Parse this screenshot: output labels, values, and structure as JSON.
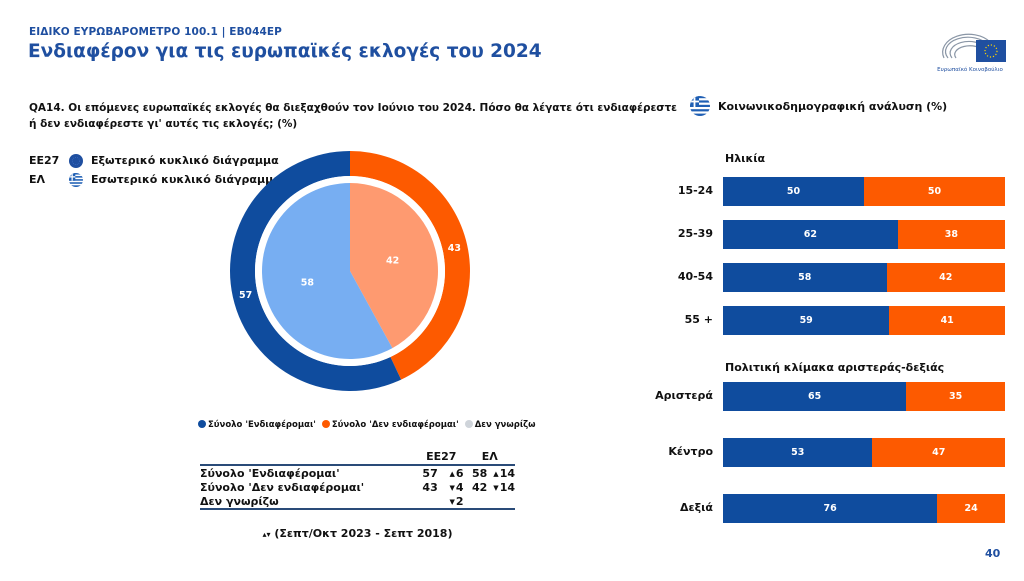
{
  "header": {
    "kicker": "ΕΙΔΙΚΟ ΕΥΡΩΒΑΡΟΜΕΤΡΟ 100.1 | ΕΒ044ΕΡ",
    "title": "Ενδιαφέρον για τις ευρωπαϊκές εκλογές του 2024",
    "logo_text": "Ευρωπαϊκό Κοινοβούλιο"
  },
  "question": "QA14. Οι επόμενες ευρωπαϊκές εκλογές θα διεξαχθούν τον Ιούνιο του 2024. Πόσο θα λέγατε ότι ενδιαφέρεστε ή δεν ενδιαφέρεστε γι' αυτές τις εκλογές; (%)",
  "socio_header": "Κοινωνικοδημογραφική ανάλυση (%)",
  "donut_legend": [
    {
      "code": "ΕΕ27",
      "icon": "eu-flag-icon",
      "label": "Εξωτερικό κυκλικό διάγραμμα"
    },
    {
      "code": "ΕΛ",
      "icon": "greek-flag-icon",
      "label": "Εσωτερικό κυκλικό διάγραμμα"
    }
  ],
  "series_legend": [
    {
      "label": "Σύνολο 'Ενδιαφέρομαι'",
      "color": "#0f4c9e"
    },
    {
      "label": "Σύνολο 'Δεν ενδιαφέρομαι'",
      "color": "#fd5a00"
    },
    {
      "label": "Δεν γνωρίζω",
      "color": "#cfd4da"
    }
  ],
  "table": {
    "headers": [
      "ΕΕ27",
      "ΕΛ"
    ],
    "rows": [
      {
        "label": "Σύνολο 'Ενδιαφέρομαι'",
        "eu": "57",
        "eu_change": "6",
        "eu_dir": "up",
        "gr": "58",
        "gr_change": "14",
        "gr_dir": "up"
      },
      {
        "label": "Σύνολο 'Δεν ενδιαφέρομαι'",
        "eu": "43",
        "eu_change": "4",
        "eu_dir": "down",
        "gr": "42",
        "gr_change": "14",
        "gr_dir": "down"
      },
      {
        "label": "Δεν γνωρίζω",
        "eu": "",
        "eu_change": "2",
        "eu_dir": "down",
        "gr": "",
        "gr_change": "",
        "gr_dir": ""
      }
    ],
    "footnote": "(Σεπτ/Οκτ 2023 - Σεπτ 2018)",
    "footnote_arrows": "▴▾"
  },
  "page_number": "40",
  "chart_data": [
    {
      "type": "pie",
      "title": "ΕΕ27 - Εξωτερικό κυκλικό διάγραμμα",
      "categories": [
        "Σύνολο 'Ενδιαφέρομαι'",
        "Σύνολο 'Δεν ενδιαφέρομαι'"
      ],
      "values": [
        57,
        43
      ],
      "colors": [
        "#0f4c9e",
        "#fd5a00"
      ]
    },
    {
      "type": "pie",
      "title": "ΕΛ - Εσωτερικό κυκλικό διάγραμμα",
      "categories": [
        "Σύνολο 'Ενδιαφέρομαι'",
        "Σύνολο 'Δεν ενδιαφέρομαι'"
      ],
      "values": [
        58,
        42
      ],
      "colors": [
        "#77aef2",
        "#fe9a70"
      ]
    },
    {
      "type": "bar",
      "stacked": true,
      "orientation": "horizontal",
      "title": "Ηλικία",
      "categories": [
        "15-24",
        "25-39",
        "40-54",
        "55 +"
      ],
      "series": [
        {
          "name": "Σύνολο 'Ενδιαφέρομαι'",
          "values": [
            50,
            62,
            58,
            59
          ],
          "color": "#0f4c9e"
        },
        {
          "name": "Σύνολο 'Δεν ενδιαφέρομαι'",
          "values": [
            50,
            38,
            42,
            41
          ],
          "color": "#fd5a00"
        }
      ]
    },
    {
      "type": "bar",
      "stacked": true,
      "orientation": "horizontal",
      "title": "Πολιτική κλίμακα αριστεράς-δεξιάς",
      "categories": [
        "Αριστερά",
        "Κέντρο",
        "Δεξιά"
      ],
      "series": [
        {
          "name": "Σύνολο 'Ενδιαφέρομαι'",
          "values": [
            65,
            53,
            76
          ],
          "color": "#0f4c9e"
        },
        {
          "name": "Σύνολο 'Δεν ενδιαφέρομαι'",
          "values": [
            35,
            47,
            24
          ],
          "color": "#fd5a00"
        }
      ]
    }
  ]
}
